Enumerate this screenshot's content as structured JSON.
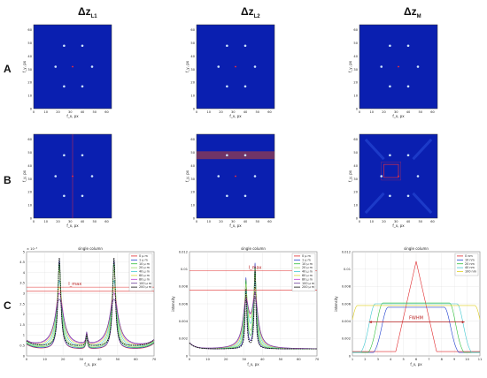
{
  "column_headers": [
    {
      "main": "Δz",
      "sub": "L1"
    },
    {
      "main": "Δz",
      "sub": "L2"
    },
    {
      "main": "Δz",
      "sub": "M"
    }
  ],
  "row_labels": [
    "A",
    "B",
    "C"
  ],
  "image_axes": {
    "xlabel": "f_x, px",
    "ylabel": "f_y, px",
    "ticks": [
      "0",
      "10",
      "20",
      "30",
      "40",
      "50",
      "60"
    ]
  },
  "colors": {
    "image_bg": "#0a1fb0",
    "spot": "#cfe6ff",
    "marker": "#ff3030",
    "band": "#8a3a55"
  },
  "chart_data": [
    {
      "type": "line",
      "title": "single column",
      "xlabel": "f_x, px",
      "ylabel": "",
      "exponent_label": "× 10⁻³",
      "xlim": [
        0,
        70
      ],
      "ylim": [
        0,
        5
      ],
      "xticks": [
        0,
        10,
        20,
        30,
        40,
        50,
        60,
        70
      ],
      "yticks": [
        0,
        0.5,
        1,
        1.5,
        2,
        2.5,
        3,
        3.5,
        4,
        4.5,
        5
      ],
      "annotation": "I_max",
      "annotation_lines": [
        3.1,
        3.3
      ],
      "grid": true,
      "legend_position": "top-right",
      "series": [
        {
          "name": "0 μ m",
          "color": "#e0282b"
        },
        {
          "name": "1 μ m",
          "color": "#1f3fcf"
        },
        {
          "name": "10 μ m",
          "color": "#2fbf3a"
        },
        {
          "name": "20 μ m",
          "color": "#9fd86a"
        },
        {
          "name": "40 μ m",
          "color": "#3fc8d0"
        },
        {
          "name": "60 μ m",
          "color": "#d8d83a"
        },
        {
          "name": "80 μ m",
          "color": "#c03ad0"
        },
        {
          "name": "100 μ m",
          "color": "#6a3a9a"
        },
        {
          "name": "200 μ m",
          "color": "#111111"
        }
      ]
    },
    {
      "type": "line",
      "title": "single column",
      "xlabel": "f_x, px",
      "ylabel": "intensity",
      "xlim": [
        0,
        70
      ],
      "ylim": [
        0,
        0.012
      ],
      "xticks": [
        0,
        10,
        20,
        30,
        40,
        50,
        60,
        70
      ],
      "yticks": [
        0,
        0.002,
        0.004,
        0.006,
        0.008,
        0.01,
        0.012
      ],
      "yticklabels": [
        "0",
        "0.002",
        "0.004",
        "0.006",
        "0.008",
        "0.01",
        "0.012"
      ],
      "annotation": "I_max",
      "annotation_lines": [
        0.0098,
        0.0076
      ],
      "grid": true,
      "legend_position": "top-right",
      "series": [
        {
          "name": "0 μ m",
          "color": "#e0282b"
        },
        {
          "name": "1 μ m",
          "color": "#1f3fcf"
        },
        {
          "name": "10 μ m",
          "color": "#2fbf3a"
        },
        {
          "name": "20 μ m",
          "color": "#9fd86a"
        },
        {
          "name": "40 μ m",
          "color": "#3fc8d0"
        },
        {
          "name": "60 μ m",
          "color": "#d8d83a"
        },
        {
          "name": "80 μ m",
          "color": "#c03ad0"
        },
        {
          "name": "100 μ m",
          "color": "#6a3a9a"
        },
        {
          "name": "200 μ m",
          "color": "#111111"
        }
      ]
    },
    {
      "type": "line",
      "title": "single column",
      "xlabel": "f_x, px",
      "ylabel": "intensity",
      "xlim": [
        1,
        11
      ],
      "ylim": [
        0,
        0.012
      ],
      "xticks": [
        1,
        2,
        3,
        4,
        5,
        6,
        7,
        8,
        9,
        10,
        11
      ],
      "yticks": [
        0,
        0.002,
        0.004,
        0.006,
        0.008,
        0.01,
        0.012
      ],
      "yticklabels": [
        "0",
        "0.002",
        "0.004",
        "0.006",
        "0.008",
        "0.01",
        "0.012"
      ],
      "annotation": "FWHM",
      "fwhm_y": 0.0039,
      "fwhm_x": [
        2.3,
        9.8
      ],
      "grid": true,
      "legend_position": "top-right",
      "series": [
        {
          "name": "0 nm",
          "color": "#e0282b"
        },
        {
          "name": "10 nm",
          "color": "#1f3fcf"
        },
        {
          "name": "20 nm",
          "color": "#2fbf3a"
        },
        {
          "name": "40 nm",
          "color": "#3fc8d0"
        },
        {
          "name": "100 nm",
          "color": "#e0d020"
        }
      ]
    }
  ]
}
